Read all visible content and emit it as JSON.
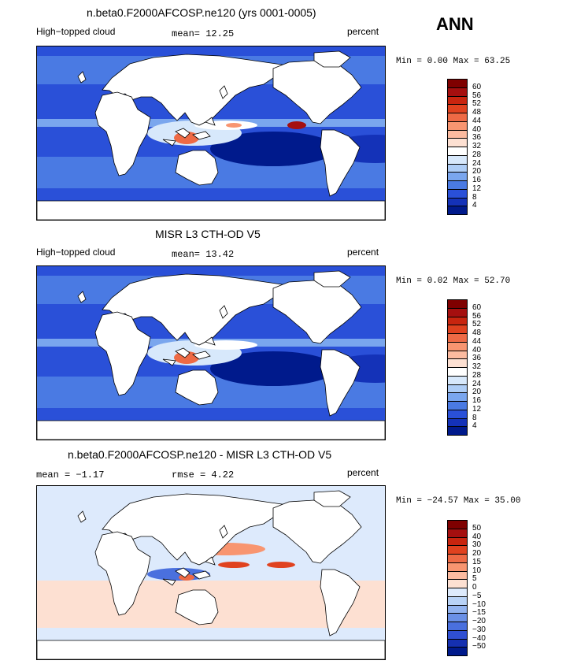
{
  "season": "ANN",
  "panels": [
    {
      "title": "n.beta0.F2000AFCOSP.ne120 (yrs 0001-0005)",
      "left_label": "High−topped cloud",
      "center_label": "mean=   12.25",
      "right_label": "percent",
      "minmax": "Min =    0.00 Max =   63.25",
      "scale": "abs",
      "hot": true
    },
    {
      "title": "MISR L3 CTH-OD V5",
      "left_label": "High−topped cloud",
      "center_label": "mean=   13.42",
      "right_label": "percent",
      "minmax": "Min =    0.02 Max =   52.70",
      "scale": "abs",
      "hot": false
    },
    {
      "title": "n.beta0.F2000AFCOSP.ne120 - MISR L3 CTH-OD V5",
      "left_label": "mean =   −1.17",
      "center_label": "rmse =    4.22",
      "right_label": "percent",
      "minmax": "Min = −24.57 Max =   35.00",
      "scale": "diff",
      "hot": true
    }
  ],
  "colorbars": {
    "abs": {
      "labels": [
        "60",
        "56",
        "52",
        "48",
        "44",
        "40",
        "36",
        "32",
        "28",
        "24",
        "20",
        "16",
        "12",
        "8",
        "4"
      ],
      "colors": [
        "#7f0000",
        "#a50f0f",
        "#c8250f",
        "#e0421f",
        "#ee6a45",
        "#f89570",
        "#fcbba0",
        "#fde0d2",
        "#ffffff",
        "#d7e8fb",
        "#aecdf6",
        "#7aa6ee",
        "#4a7ae3",
        "#2a50d8",
        "#1432b8",
        "#001a8c"
      ]
    },
    "diff": {
      "labels": [
        "50",
        "40",
        "30",
        "20",
        "15",
        "10",
        "5",
        "0",
        "−5",
        "−10",
        "−15",
        "−20",
        "−30",
        "−40",
        "−50"
      ],
      "colors": [
        "#7f0000",
        "#a50f0f",
        "#c8250f",
        "#e0421f",
        "#ee6a45",
        "#f89570",
        "#fcbba0",
        "#fde0d2",
        "#ddeafc",
        "#b8d2f6",
        "#92b3ef",
        "#6a90e6",
        "#4a70de",
        "#2f4fd2",
        "#1530b0",
        "#001a8c"
      ]
    }
  }
}
